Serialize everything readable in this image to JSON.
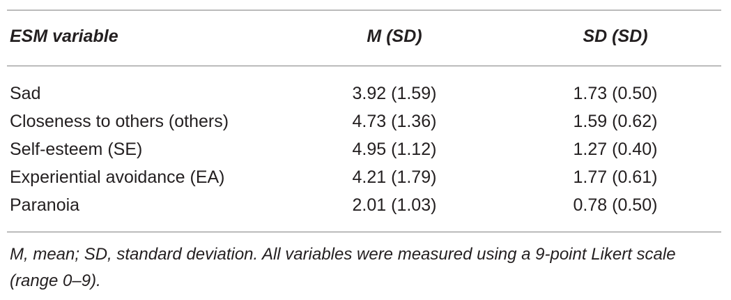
{
  "table": {
    "headers": {
      "variable": "ESM variable",
      "mean": "M (SD)",
      "sd": "SD (SD)"
    },
    "rows": [
      {
        "variable": "Sad",
        "mean": "3.92 (1.59)",
        "sd": "1.73 (0.50)"
      },
      {
        "variable": "Closeness to others (others)",
        "mean": "4.73 (1.36)",
        "sd": "1.59 (0.62)"
      },
      {
        "variable": "Self-esteem (SE)",
        "mean": "4.95 (1.12)",
        "sd": "1.27 (0.40)"
      },
      {
        "variable": "Experiential avoidance (EA)",
        "mean": "4.21 (1.79)",
        "sd": "1.77 (0.61)"
      },
      {
        "variable": "Paranoia",
        "mean": "2.01 (1.03)",
        "sd": "0.78 (0.50)"
      }
    ],
    "footnote": "M, mean; SD, standard deviation. All variables were measured using a 9-point Likert scale (range 0–9)."
  }
}
